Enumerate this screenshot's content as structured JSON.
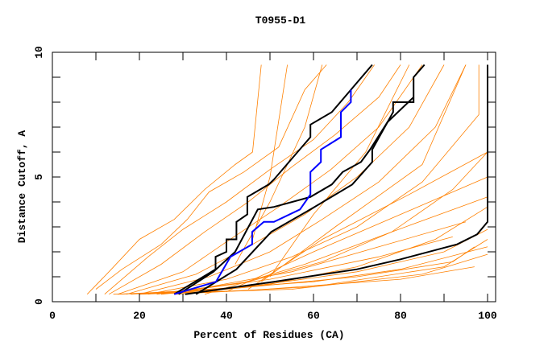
{
  "chart_data": {
    "type": "line",
    "title": "T0955-D1",
    "xlabel": "Percent of Residues (CA)",
    "ylabel": "Distance Cutoff, A",
    "xlim": [
      0,
      100
    ],
    "ylim": [
      0,
      10
    ],
    "xticks": [
      0,
      20,
      40,
      60,
      80,
      100
    ],
    "xtick_labels": [
      "0",
      "20",
      "40",
      "60",
      "80",
      "100"
    ],
    "yticks": [
      0,
      5,
      10
    ],
    "ytick_labels": [
      "0",
      "5",
      "10"
    ],
    "grid": false,
    "colors": {
      "other_models": "#ff8000",
      "highlight": "#000000",
      "selected": "#0000ff"
    },
    "background_series": [
      [
        [
          8,
          0.3
        ],
        [
          13,
          1.2
        ],
        [
          20,
          2.5
        ],
        [
          28,
          3.3
        ],
        [
          35,
          4.5
        ],
        [
          42,
          5.5
        ],
        [
          46,
          6
        ],
        [
          48,
          9.5
        ]
      ],
      [
        [
          10,
          0.5
        ],
        [
          16,
          1.3
        ],
        [
          25,
          2.3
        ],
        [
          31,
          3.3
        ],
        [
          36,
          4.4
        ],
        [
          44,
          5.2
        ],
        [
          52,
          6.2
        ],
        [
          58,
          8.5
        ],
        [
          63,
          9.5
        ]
      ],
      [
        [
          12,
          0.3
        ],
        [
          22,
          1.8
        ],
        [
          30,
          2.9
        ],
        [
          40,
          4
        ],
        [
          50,
          5.3
        ],
        [
          60,
          6.5
        ],
        [
          68,
          8
        ],
        [
          74,
          9.5
        ]
      ],
      [
        [
          13,
          0.3
        ],
        [
          25,
          1.5
        ],
        [
          35,
          2.8
        ],
        [
          45,
          4
        ],
        [
          55,
          5.4
        ],
        [
          65,
          6.7
        ],
        [
          75,
          8.2
        ],
        [
          80,
          9.5
        ]
      ],
      [
        [
          15,
          0.3
        ],
        [
          30,
          1.2
        ],
        [
          40,
          2.4
        ],
        [
          52,
          3.8
        ],
        [
          64,
          5.3
        ],
        [
          75,
          7
        ],
        [
          85,
          9.5
        ]
      ],
      [
        [
          17,
          0.3
        ],
        [
          33,
          1.1
        ],
        [
          45,
          2.2
        ],
        [
          58,
          3.5
        ],
        [
          70,
          5
        ],
        [
          82,
          7
        ],
        [
          90,
          9.5
        ]
      ],
      [
        [
          20,
          0.3
        ],
        [
          36,
          1.0
        ],
        [
          50,
          2.0
        ],
        [
          62,
          3.3
        ],
        [
          75,
          4.8
        ],
        [
          88,
          7
        ],
        [
          95,
          9.5
        ]
      ],
      [
        [
          22,
          0.3
        ],
        [
          40,
          0.9
        ],
        [
          55,
          1.8
        ],
        [
          70,
          3.0
        ],
        [
          85,
          4.8
        ],
        [
          98,
          7.5
        ],
        [
          98,
          9.5
        ]
      ],
      [
        [
          24,
          0.3
        ],
        [
          45,
          0.8
        ],
        [
          62,
          1.6
        ],
        [
          78,
          2.8
        ],
        [
          92,
          4.5
        ],
        [
          100,
          6
        ],
        [
          100,
          9.5
        ]
      ],
      [
        [
          25,
          0.3
        ],
        [
          50,
          0.7
        ],
        [
          70,
          1.4
        ],
        [
          88,
          2.5
        ],
        [
          100,
          3.8
        ]
      ],
      [
        [
          18,
          0.3
        ],
        [
          45,
          0.6
        ],
        [
          70,
          1.2
        ],
        [
          90,
          2.0
        ],
        [
          100,
          2.9
        ]
      ],
      [
        [
          15,
          0.3
        ],
        [
          40,
          0.5
        ],
        [
          70,
          1.0
        ],
        [
          92,
          1.6
        ],
        [
          97,
          2.2
        ]
      ],
      [
        [
          14,
          0.3
        ],
        [
          45,
          0.45
        ],
        [
          80,
          0.9
        ],
        [
          97,
          1.4
        ]
      ],
      [
        [
          20,
          0.3
        ],
        [
          55,
          0.5
        ],
        [
          85,
          1.1
        ],
        [
          100,
          1.9
        ]
      ],
      [
        [
          28,
          0.3
        ],
        [
          60,
          0.6
        ],
        [
          90,
          1.4
        ],
        [
          100,
          2.5
        ]
      ],
      [
        [
          30,
          0.4
        ],
        [
          55,
          1.2
        ],
        [
          75,
          2.2
        ],
        [
          95,
          3.2
        ]
      ],
      [
        [
          35,
          0.3
        ],
        [
          58,
          1.5
        ],
        [
          78,
          2.8
        ],
        [
          100,
          4.2
        ]
      ],
      [
        [
          40,
          0.4
        ],
        [
          60,
          2
        ],
        [
          80,
          3.5
        ],
        [
          100,
          5
        ]
      ],
      [
        [
          45,
          0.5
        ],
        [
          62,
          2.5
        ],
        [
          82,
          4.3
        ],
        [
          100,
          6
        ]
      ],
      [
        [
          48,
          0.8
        ],
        [
          65,
          3
        ],
        [
          85,
          5.5
        ],
        [
          95,
          9.5
        ]
      ],
      [
        [
          50,
          1.0
        ],
        [
          60,
          3.5
        ],
        [
          72,
          6
        ],
        [
          82,
          9.5
        ]
      ],
      [
        [
          42,
          1.5
        ],
        [
          50,
          4
        ],
        [
          58,
          7
        ],
        [
          62,
          9.5
        ]
      ],
      [
        [
          46,
          2.5
        ],
        [
          50,
          5
        ],
        [
          54,
          9.5
        ]
      ],
      [
        [
          20,
          0.3
        ],
        [
          60,
          0.8
        ],
        [
          80,
          1.3
        ],
        [
          100,
          2.2
        ]
      ],
      [
        [
          25,
          0.3
        ],
        [
          50,
          0.9
        ],
        [
          75,
          1.8
        ],
        [
          92,
          2.6
        ]
      ]
    ],
    "highlight_series": [
      [
        [
          28,
          0.3
        ],
        [
          37.5,
          1.3
        ],
        [
          37.5,
          1.8
        ],
        [
          40,
          2.0
        ],
        [
          40,
          2.5
        ],
        [
          42.3,
          2.5
        ],
        [
          42.3,
          3.2
        ],
        [
          44.8,
          3.5
        ],
        [
          44.8,
          4.2
        ],
        [
          49.7,
          4.7
        ],
        [
          50.9,
          4.9
        ],
        [
          59.3,
          6.6
        ],
        [
          59.3,
          7.1
        ],
        [
          64.2,
          7.6
        ],
        [
          73.5,
          9.5
        ]
      ],
      [
        [
          33,
          0.3
        ],
        [
          42.3,
          1.3
        ],
        [
          50.3,
          2.8
        ],
        [
          59.3,
          3.7
        ],
        [
          68.9,
          4.7
        ],
        [
          73.5,
          5.6
        ],
        [
          73.5,
          6.1
        ],
        [
          78.3,
          7.6
        ],
        [
          78.3,
          8.0
        ],
        [
          83,
          8.0
        ],
        [
          83,
          9.0
        ],
        [
          85.5,
          9.5
        ]
      ],
      [
        [
          29,
          0.3
        ],
        [
          37,
          1.2
        ],
        [
          42,
          2.0
        ],
        [
          47.2,
          3.7
        ],
        [
          50.9,
          3.8
        ],
        [
          59.3,
          4.2
        ],
        [
          64.2,
          4.7
        ],
        [
          66.7,
          5.2
        ],
        [
          70.9,
          5.6
        ],
        [
          73,
          6.1
        ],
        [
          77,
          7.2
        ],
        [
          83,
          8.2
        ]
      ],
      [
        [
          30.5,
          0.3
        ],
        [
          50.9,
          0.8
        ],
        [
          70,
          1.3
        ],
        [
          80,
          1.7
        ],
        [
          93,
          2.3
        ],
        [
          97.6,
          2.7
        ],
        [
          100,
          3.2
        ],
        [
          100,
          9.5
        ]
      ]
    ],
    "selected_series": [
      [
        28,
        0.3
      ],
      [
        37.6,
        0.8
      ],
      [
        40.9,
        1.8
      ],
      [
        45.9,
        2.3
      ],
      [
        45.9,
        2.8
      ],
      [
        48.6,
        3.2
      ],
      [
        50.9,
        3.2
      ],
      [
        56.9,
        3.7
      ],
      [
        59.3,
        4.3
      ],
      [
        59.3,
        5.2
      ],
      [
        61.7,
        5.6
      ],
      [
        61.7,
        6.1
      ],
      [
        66.3,
        6.6
      ],
      [
        66.3,
        7.6
      ],
      [
        68.6,
        8.0
      ],
      [
        68.6,
        8.5
      ]
    ]
  }
}
